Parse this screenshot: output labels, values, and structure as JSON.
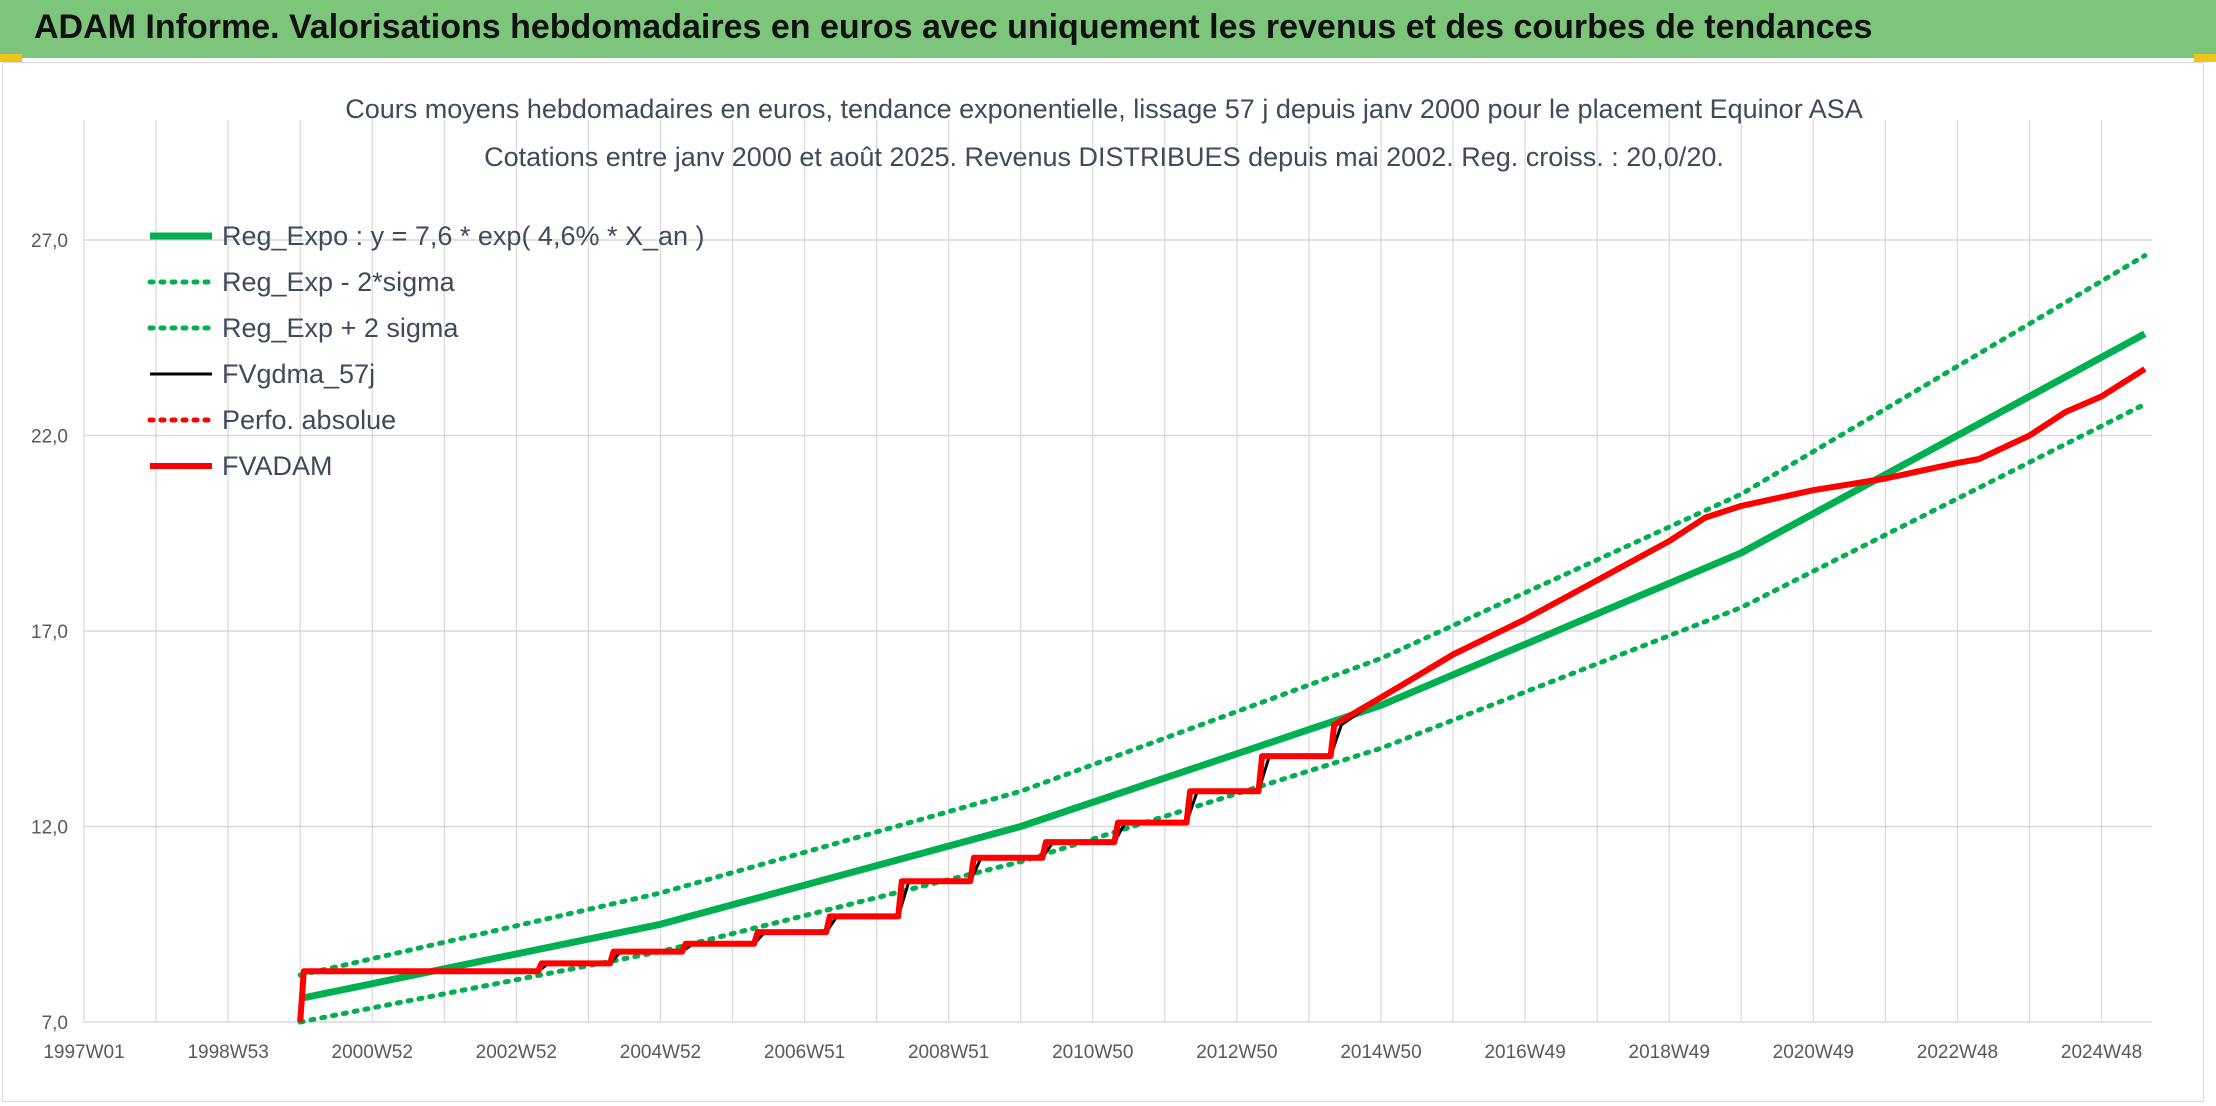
{
  "header": {
    "title": "ADAM Informe. Valorisations hebdomadaires en euros avec uniquement les revenus et des courbes de tendances"
  },
  "colors": {
    "banner": "#7cc57b",
    "green": "#00b050",
    "black": "#000000",
    "red": "#ff0000",
    "grid": "#d9d9d9"
  },
  "chart_data": {
    "type": "line",
    "title": "Cours moyens hebdomadaires en euros, tendance exponentielle, lissage 57 j depuis janv 2000 pour le placement Equinor ASA",
    "subtitle": "Cotations entre janv 2000 et août 2025. Revenus DISTRIBUES depuis mai 2002. Reg. croiss. : 20,0/20.",
    "x_tick_labels": [
      "1997W01",
      "1998W53",
      "2000W52",
      "2002W52",
      "2004W52",
      "2006W51",
      "2008W51",
      "2010W50",
      "2012W50",
      "2014W50",
      "2016W49",
      "2018W49",
      "2020W49",
      "2022W48",
      "2024W48"
    ],
    "y_tick_labels": [
      "7,0",
      "12,0",
      "17,0",
      "22,0",
      "27,0"
    ],
    "xlim": [
      1997.0,
      2025.7
    ],
    "ylim": [
      7.0,
      27.0
    ],
    "yticks": [
      7.0,
      12.0,
      17.0,
      22.0,
      27.0
    ],
    "grid": true,
    "legend_position": "top-left",
    "series": [
      {
        "name": "Reg_Expo : y = 7,6 * exp( 4,6% *  X_an )",
        "color": "#00b050",
        "style": "solid",
        "x": [
          2000.0,
          2005.0,
          2010.0,
          2015.0,
          2020.0,
          2025.6
        ],
        "y": [
          7.6,
          9.5,
          12.0,
          15.1,
          19.0,
          24.6
        ]
      },
      {
        "name": "Reg_Exp - 2*sigma",
        "color": "#00b050",
        "style": "dotted",
        "x": [
          2000.0,
          2005.0,
          2010.0,
          2015.0,
          2020.0,
          2025.6
        ],
        "y": [
          7.0,
          8.8,
          11.1,
          14.0,
          17.6,
          22.8
        ]
      },
      {
        "name": "Reg_Exp + 2 sigma",
        "color": "#00b050",
        "style": "dotted",
        "x": [
          2000.0,
          2005.0,
          2010.0,
          2015.0,
          2020.0,
          2025.6
        ],
        "y": [
          8.2,
          10.3,
          12.9,
          16.3,
          20.5,
          26.6
        ]
      },
      {
        "name": "FVgdma_57j",
        "color": "#000000",
        "style": "solid",
        "x": [
          2000.0,
          2000.05,
          2003.3,
          2003.45,
          2004.3,
          2004.45,
          2005.3,
          2005.45,
          2006.3,
          2006.45,
          2007.3,
          2007.45,
          2008.3,
          2008.45,
          2009.3,
          2009.45,
          2010.3,
          2010.45,
          2011.3,
          2011.45,
          2012.3,
          2012.45,
          2013.3,
          2013.45,
          2014.3,
          2014.45,
          2015.0,
          2016.0,
          2017.0,
          2018.0,
          2019.0,
          2019.5,
          2020.0,
          2021.0,
          2022.0,
          2023.0,
          2023.3,
          2024.0,
          2024.5,
          2025.0,
          2025.6
        ],
        "y": [
          7.0,
          8.3,
          8.3,
          8.5,
          8.5,
          8.8,
          8.8,
          9.0,
          9.0,
          9.3,
          9.3,
          9.7,
          9.7,
          10.6,
          10.6,
          11.2,
          11.2,
          11.6,
          11.6,
          12.1,
          12.1,
          12.9,
          12.9,
          13.8,
          13.8,
          14.6,
          15.3,
          16.4,
          17.3,
          18.3,
          19.3,
          19.9,
          20.2,
          20.6,
          20.9,
          21.3,
          21.4,
          22.0,
          22.6,
          23.0,
          23.7
        ]
      },
      {
        "name": "Perfo. absolue",
        "color": "#ff0000",
        "style": "dotted",
        "x": [],
        "y": []
      },
      {
        "name": "FVADAM",
        "color": "#ff0000",
        "style": "solid",
        "x": [
          2000.0,
          2000.05,
          2003.3,
          2003.35,
          2004.3,
          2004.35,
          2005.3,
          2005.35,
          2006.3,
          2006.35,
          2007.3,
          2007.35,
          2008.3,
          2008.35,
          2009.3,
          2009.35,
          2010.3,
          2010.35,
          2011.3,
          2011.35,
          2012.3,
          2012.35,
          2013.3,
          2013.35,
          2014.3,
          2014.35,
          2015.0,
          2016.0,
          2017.0,
          2018.0,
          2019.0,
          2019.5,
          2020.0,
          2021.0,
          2022.0,
          2023.0,
          2023.3,
          2024.0,
          2024.5,
          2025.0,
          2025.6
        ],
        "y": [
          7.0,
          8.3,
          8.3,
          8.5,
          8.5,
          8.8,
          8.8,
          9.0,
          9.0,
          9.3,
          9.3,
          9.7,
          9.7,
          10.6,
          10.6,
          11.2,
          11.2,
          11.6,
          11.6,
          12.1,
          12.1,
          12.9,
          12.9,
          13.8,
          13.8,
          14.6,
          15.3,
          16.4,
          17.3,
          18.3,
          19.3,
          19.9,
          20.2,
          20.6,
          20.9,
          21.3,
          21.4,
          22.0,
          22.6,
          23.0,
          23.7
        ]
      }
    ]
  }
}
